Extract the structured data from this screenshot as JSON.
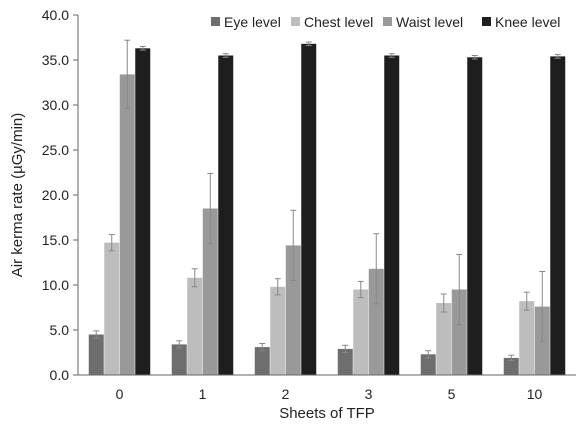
{
  "chart_data": {
    "type": "bar",
    "xlabel": "Sheets of TFP",
    "ylabel": "Air kerma rate (µGy/min)",
    "categories": [
      "0",
      "1",
      "2",
      "3",
      "5",
      "10"
    ],
    "ylim": [
      0,
      40
    ],
    "yticks": [
      "0.0",
      "5.0",
      "10.0",
      "15.0",
      "20.0",
      "25.0",
      "30.0",
      "35.0",
      "40.0"
    ],
    "grid": false,
    "legend_position": "top-right",
    "series": [
      {
        "name": "Eye level",
        "color": "#6e6e6e",
        "values": [
          4.5,
          3.4,
          3.1,
          2.9,
          2.3,
          1.9
        ],
        "errors": [
          0.4,
          0.4,
          0.4,
          0.4,
          0.4,
          0.3
        ]
      },
      {
        "name": "Chest level",
        "color": "#bdbdbd",
        "values": [
          14.7,
          10.8,
          9.8,
          9.5,
          8.0,
          8.2
        ],
        "errors": [
          0.9,
          1.0,
          0.9,
          0.9,
          1.0,
          1.0
        ]
      },
      {
        "name": "Waist level",
        "color": "#999999",
        "values": [
          33.4,
          18.5,
          14.4,
          11.8,
          9.5,
          7.6
        ],
        "errors": [
          3.8,
          3.9,
          3.9,
          3.9,
          3.9,
          3.9
        ]
      },
      {
        "name": "Knee level",
        "color": "#1e1e1e",
        "values": [
          36.3,
          35.5,
          36.8,
          35.5,
          35.3,
          35.4
        ],
        "errors": [
          0.2,
          0.2,
          0.2,
          0.2,
          0.2,
          0.2
        ]
      }
    ]
  }
}
